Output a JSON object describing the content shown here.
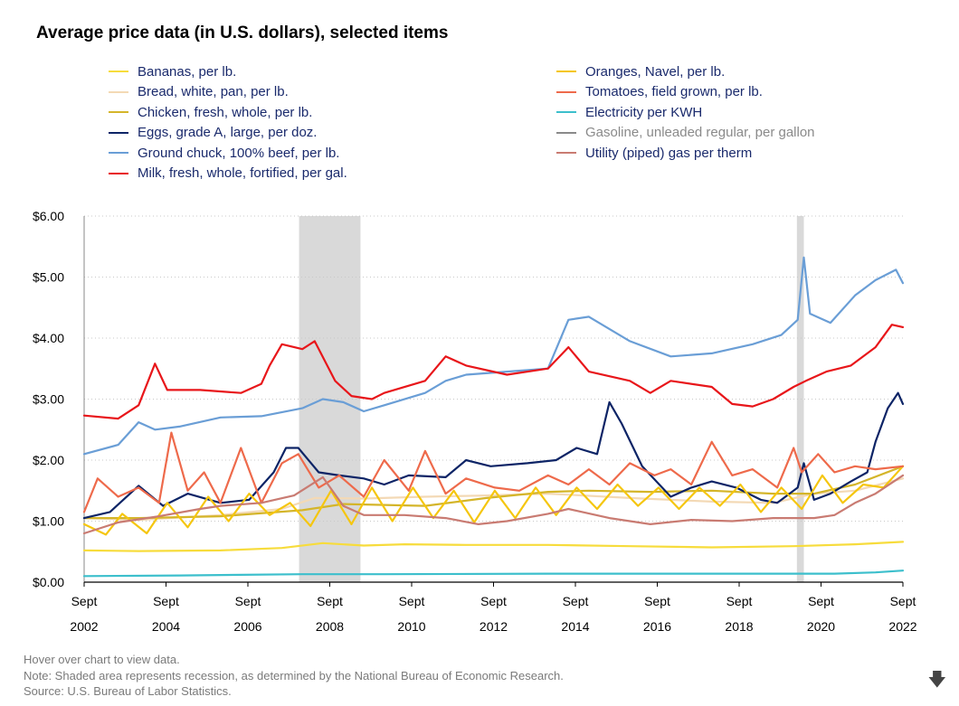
{
  "title": "Average price data (in U.S. dollars), selected items",
  "chart_data": {
    "type": "line",
    "ylim": [
      0,
      6
    ],
    "yticks": [
      "$0.00",
      "$1.00",
      "$2.00",
      "$3.00",
      "$4.00",
      "$5.00",
      "$6.00"
    ],
    "xlim": [
      2002.67,
      2022.67
    ],
    "xticks": [
      {
        "x": 2002.67,
        "top": "Sept",
        "bottom": "2002"
      },
      {
        "x": 2004.67,
        "top": "Sept",
        "bottom": "2004"
      },
      {
        "x": 2006.67,
        "top": "Sept",
        "bottom": "2006"
      },
      {
        "x": 2008.67,
        "top": "Sept",
        "bottom": "2008"
      },
      {
        "x": 2010.67,
        "top": "Sept",
        "bottom": "2010"
      },
      {
        "x": 2012.67,
        "top": "Sept",
        "bottom": "2012"
      },
      {
        "x": 2014.67,
        "top": "Sept",
        "bottom": "2014"
      },
      {
        "x": 2016.67,
        "top": "Sept",
        "bottom": "2016"
      },
      {
        "x": 2018.67,
        "top": "Sept",
        "bottom": "2018"
      },
      {
        "x": 2020.67,
        "top": "Sept",
        "bottom": "2020"
      },
      {
        "x": 2022.67,
        "top": "Sept",
        "bottom": "2022"
      }
    ],
    "grid": "horizontal dotted",
    "recessions": [
      [
        2007.92,
        2009.42
      ],
      [
        2020.08,
        2020.25
      ]
    ],
    "series": [
      {
        "name": "Bananas, per lb.",
        "color": "#f7dc3c",
        "x": [
          2002.67,
          2004,
          2006,
          2007.5,
          2008.5,
          2009.5,
          2010.5,
          2012,
          2014,
          2016,
          2018,
          2020,
          2021.5,
          2022.67
        ],
        "values": [
          0.52,
          0.51,
          0.52,
          0.56,
          0.64,
          0.6,
          0.62,
          0.61,
          0.61,
          0.59,
          0.57,
          0.59,
          0.62,
          0.66
        ]
      },
      {
        "name": "Bread, white, pan, per lb.",
        "color": "#f3d9b5",
        "x": [
          2002.67,
          2004,
          2006,
          2007.5,
          2008.3,
          2009.5,
          2011,
          2012.5,
          2014,
          2016,
          2018,
          2019.5,
          2020.5,
          2021.5,
          2022.67
        ],
        "values": [
          1.05,
          1.02,
          1.1,
          1.2,
          1.38,
          1.37,
          1.4,
          1.42,
          1.45,
          1.38,
          1.32,
          1.3,
          1.45,
          1.5,
          1.7
        ]
      },
      {
        "name": "Chicken, fresh, whole, per lb.",
        "color": "#d4b52a",
        "x": [
          2002.67,
          2004,
          2006,
          2008,
          2009,
          2011,
          2012.5,
          2014,
          2015,
          2016.5,
          2018,
          2019.5,
          2020.5,
          2021.5,
          2022.67
        ],
        "values": [
          1.05,
          1.05,
          1.08,
          1.18,
          1.28,
          1.25,
          1.38,
          1.48,
          1.5,
          1.48,
          1.5,
          1.45,
          1.45,
          1.6,
          1.9
        ]
      },
      {
        "name": "Eggs, grade A, large, per doz.",
        "color": "#0d2466",
        "x": [
          2002.67,
          2003.3,
          2004,
          2004.6,
          2005.2,
          2006,
          2006.7,
          2007.3,
          2007.6,
          2007.9,
          2008.4,
          2008.9,
          2009.5,
          2010,
          2010.6,
          2011.5,
          2012,
          2012.6,
          2013.5,
          2014.2,
          2014.7,
          2015.2,
          2015.5,
          2015.8,
          2016.3,
          2017,
          2017.5,
          2018,
          2018.6,
          2019.2,
          2019.6,
          2020.1,
          2020.25,
          2020.5,
          2020.9,
          2021.4,
          2021.8,
          2022,
          2022.3,
          2022.55,
          2022.67
        ],
        "values": [
          1.05,
          1.15,
          1.58,
          1.25,
          1.45,
          1.3,
          1.35,
          1.8,
          2.2,
          2.2,
          1.8,
          1.75,
          1.7,
          1.6,
          1.75,
          1.72,
          2.0,
          1.9,
          1.95,
          2.0,
          2.2,
          2.1,
          2.95,
          2.6,
          1.9,
          1.4,
          1.55,
          1.65,
          1.55,
          1.35,
          1.3,
          1.55,
          1.95,
          1.35,
          1.45,
          1.65,
          1.8,
          2.3,
          2.85,
          3.1,
          2.92
        ]
      },
      {
        "name": "Ground chuck, 100% beef, per lb.",
        "color": "#6a9ed6",
        "x": [
          2002.67,
          2003.5,
          2004,
          2004.4,
          2005,
          2006,
          2007,
          2008,
          2008.5,
          2009,
          2009.5,
          2010,
          2011,
          2011.5,
          2012,
          2013,
          2014,
          2014.5,
          2015,
          2016,
          2017,
          2018,
          2019,
          2019.7,
          2020.1,
          2020.25,
          2020.4,
          2020.9,
          2021.5,
          2022,
          2022.5,
          2022.67
        ],
        "values": [
          2.1,
          2.25,
          2.62,
          2.5,
          2.55,
          2.7,
          2.72,
          2.85,
          3.0,
          2.95,
          2.8,
          2.9,
          3.1,
          3.3,
          3.4,
          3.45,
          3.5,
          4.3,
          4.35,
          3.95,
          3.7,
          3.75,
          3.9,
          4.05,
          4.3,
          5.32,
          4.4,
          4.25,
          4.7,
          4.95,
          5.12,
          4.9
        ]
      },
      {
        "name": "Milk, fresh, whole, fortified, per gal.",
        "color": "#e8161a",
        "x": [
          2002.67,
          2003.5,
          2004,
          2004.4,
          2004.7,
          2005.5,
          2006.5,
          2007,
          2007.2,
          2007.5,
          2008,
          2008.3,
          2008.8,
          2009.2,
          2009.7,
          2010,
          2011,
          2011.5,
          2012,
          2013,
          2014,
          2014.5,
          2015,
          2016,
          2016.5,
          2017,
          2018,
          2018.5,
          2019,
          2019.5,
          2020,
          2020.3,
          2020.8,
          2021.4,
          2022,
          2022.4,
          2022.67
        ],
        "values": [
          2.73,
          2.68,
          2.9,
          3.58,
          3.15,
          3.15,
          3.1,
          3.25,
          3.55,
          3.9,
          3.82,
          3.95,
          3.3,
          3.05,
          3.0,
          3.1,
          3.3,
          3.7,
          3.55,
          3.4,
          3.5,
          3.85,
          3.45,
          3.3,
          3.1,
          3.3,
          3.2,
          2.92,
          2.88,
          3.0,
          3.2,
          3.3,
          3.45,
          3.55,
          3.85,
          4.22,
          4.18
        ]
      },
      {
        "name": "Oranges, Navel, per lb.",
        "color": "#f5c60f",
        "x": [
          2002.67,
          2003.2,
          2003.6,
          2004.2,
          2004.7,
          2005.2,
          2005.7,
          2006.2,
          2006.7,
          2007.2,
          2007.7,
          2008.2,
          2008.7,
          2009.2,
          2009.7,
          2010.2,
          2010.7,
          2011.2,
          2011.7,
          2012.2,
          2012.7,
          2013.2,
          2013.7,
          2014.2,
          2014.7,
          2015.2,
          2015.7,
          2016.2,
          2016.7,
          2017.2,
          2017.7,
          2018.2,
          2018.7,
          2019.2,
          2019.7,
          2020.2,
          2020.7,
          2021.2,
          2021.7,
          2022.2,
          2022.67
        ],
        "values": [
          0.95,
          0.78,
          1.12,
          0.8,
          1.3,
          0.9,
          1.4,
          1.0,
          1.45,
          1.1,
          1.3,
          0.92,
          1.5,
          0.95,
          1.55,
          1.0,
          1.55,
          1.05,
          1.5,
          0.98,
          1.5,
          1.05,
          1.55,
          1.1,
          1.55,
          1.2,
          1.6,
          1.25,
          1.55,
          1.2,
          1.55,
          1.25,
          1.6,
          1.15,
          1.55,
          1.2,
          1.75,
          1.3,
          1.6,
          1.55,
          1.9
        ]
      },
      {
        "name": "Tomatoes, field grown, per lb.",
        "color": "#ee6a4b",
        "x": [
          2002.67,
          2003,
          2003.5,
          2004,
          2004.5,
          2004.8,
          2005.2,
          2005.6,
          2006,
          2006.5,
          2007,
          2007.5,
          2007.9,
          2008.4,
          2008.9,
          2009.5,
          2010,
          2010.6,
          2011,
          2011.5,
          2012,
          2012.7,
          2013.3,
          2014,
          2014.5,
          2015,
          2015.5,
          2016,
          2016.6,
          2017,
          2017.5,
          2018,
          2018.5,
          2019,
          2019.6,
          2020,
          2020.2,
          2020.6,
          2021,
          2021.5,
          2022,
          2022.67
        ],
        "values": [
          1.15,
          1.7,
          1.4,
          1.55,
          1.3,
          2.45,
          1.5,
          1.8,
          1.3,
          2.2,
          1.3,
          1.95,
          2.1,
          1.55,
          1.75,
          1.4,
          2.0,
          1.5,
          2.15,
          1.45,
          1.7,
          1.55,
          1.5,
          1.75,
          1.6,
          1.85,
          1.6,
          1.95,
          1.75,
          1.85,
          1.6,
          2.3,
          1.75,
          1.85,
          1.55,
          2.2,
          1.8,
          2.1,
          1.8,
          1.9,
          1.85,
          1.9
        ]
      },
      {
        "name": "Electricity per KWH",
        "color": "#3cbfcc",
        "x": [
          2002.67,
          2005,
          2008,
          2010,
          2014,
          2018,
          2021,
          2022,
          2022.67
        ],
        "values": [
          0.1,
          0.11,
          0.13,
          0.13,
          0.14,
          0.14,
          0.14,
          0.16,
          0.19
        ]
      },
      {
        "name": "Gasoline, unleaded regular, per gallon",
        "color": "#8a8a8a",
        "x": [],
        "values": []
      },
      {
        "name": "Utility (piped) gas per therm",
        "color": "#c97b72",
        "x": [
          2002.67,
          2003.5,
          2004.5,
          2005.5,
          2006,
          2007,
          2007.8,
          2008.5,
          2009,
          2009.5,
          2010.5,
          2011.5,
          2012.3,
          2013,
          2014,
          2014.5,
          2015.5,
          2016.5,
          2017.5,
          2018.5,
          2019.5,
          2020.5,
          2021,
          2021.5,
          2022,
          2022.67
        ],
        "values": [
          0.8,
          0.98,
          1.08,
          1.2,
          1.25,
          1.3,
          1.42,
          1.72,
          1.25,
          1.1,
          1.1,
          1.05,
          0.95,
          1.0,
          1.12,
          1.2,
          1.05,
          0.95,
          1.02,
          1.0,
          1.05,
          1.05,
          1.1,
          1.3,
          1.45,
          1.75
        ]
      }
    ]
  },
  "footer": {
    "hover": "Hover over chart to view data.",
    "note": "Note: Shaded area represents recession, as determined by the National Bureau of Economic Research.",
    "source": "Source: U.S. Bureau of Labor Statistics."
  },
  "download_icon": "download-arrow-icon"
}
